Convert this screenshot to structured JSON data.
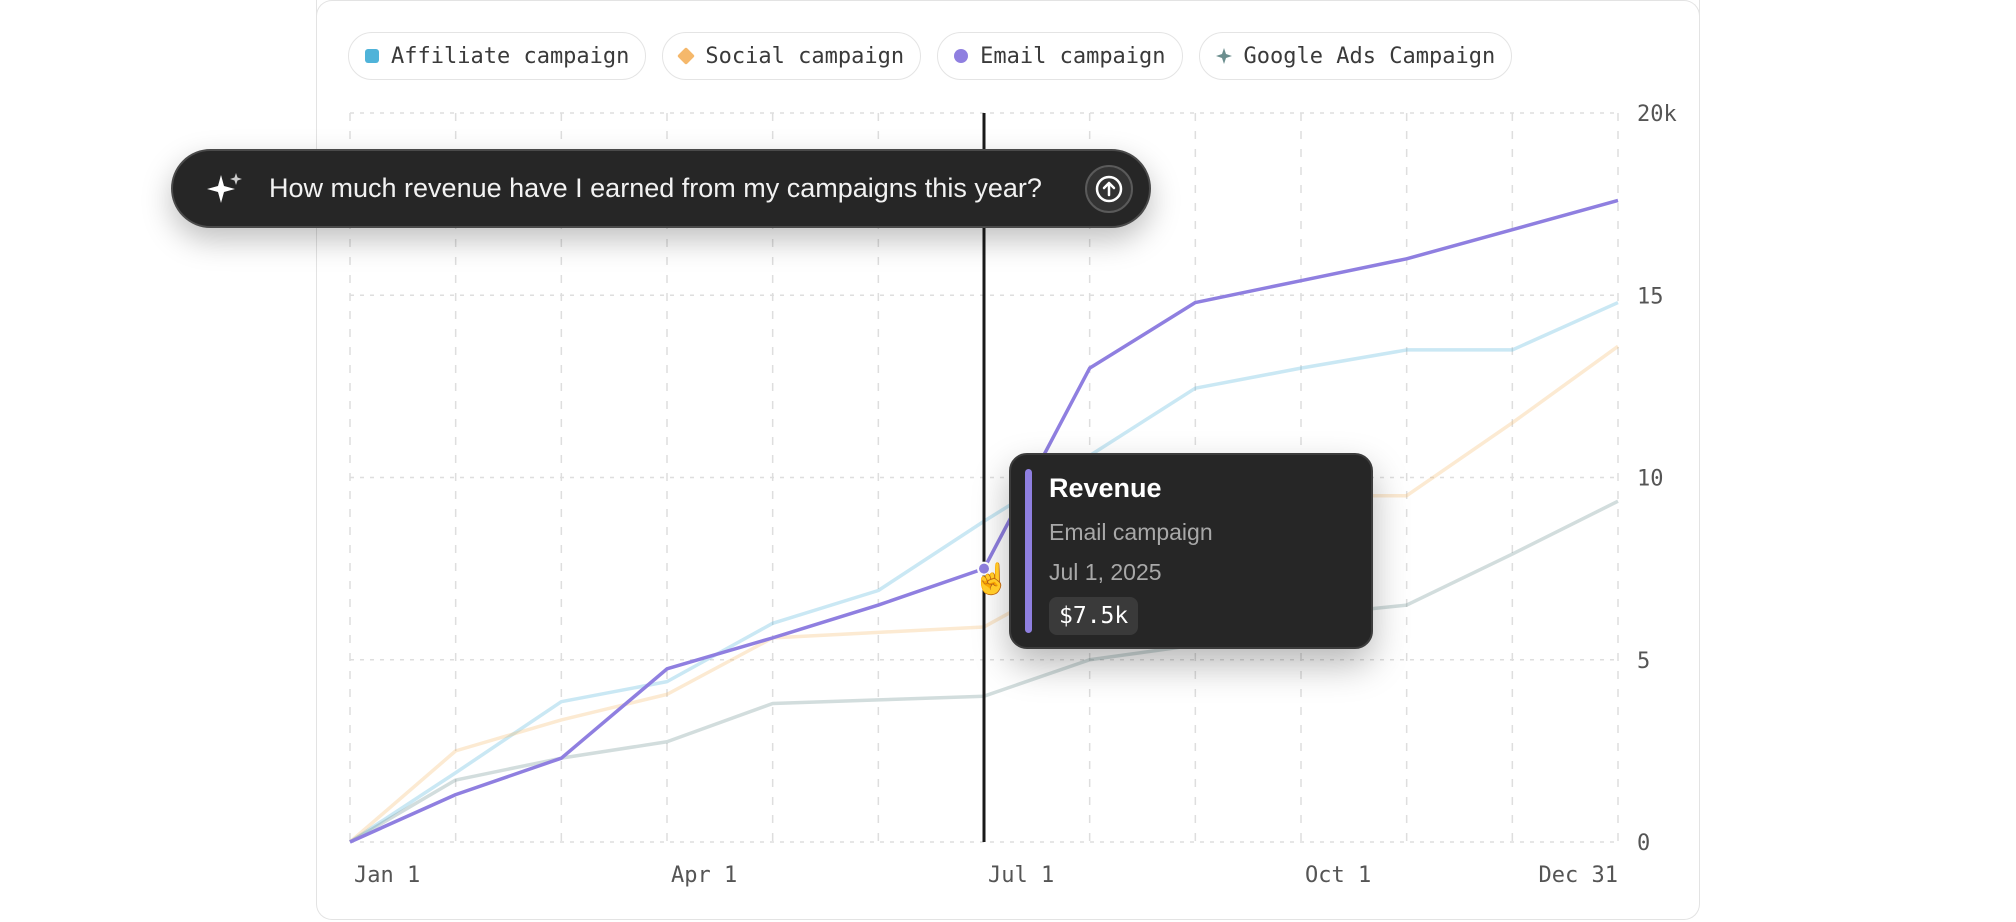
{
  "legend": [
    {
      "label": "Affiliate campaign",
      "color": "#4fb3d9",
      "icon": "square"
    },
    {
      "label": "Social campaign",
      "color": "#f5b86b",
      "icon": "diamond"
    },
    {
      "label": "Email campaign",
      "color": "#8f7fe0",
      "icon": "circle"
    },
    {
      "label": "Google Ads Campaign",
      "color": "#6b8e8e",
      "icon": "sparkle"
    }
  ],
  "prompt": {
    "text": "How much revenue have I earned from my campaigns this year?",
    "icon": "sparkle-icon",
    "send_icon": "arrow-up-circle-icon"
  },
  "tooltip": {
    "title": "Revenue",
    "series": "Email campaign",
    "date": "Jul 1, 2025",
    "value": "$7.5k",
    "accent": "#8f7fe0"
  },
  "chart_data": {
    "type": "line",
    "x": [
      "Jan 1",
      "Feb 1",
      "Mar 1",
      "Apr 1",
      "May 1",
      "Jun 1",
      "Jul 1",
      "Aug 1",
      "Sep 1",
      "Oct 1",
      "Nov 1",
      "Dec 1",
      "Dec 31"
    ],
    "x_tick_labels": [
      "Jan 1",
      "Apr 1",
      "Jul 1",
      "Oct 1",
      "Dec 31"
    ],
    "y_tick_labels": [
      "0",
      "5",
      "10",
      "15",
      "20k"
    ],
    "ylim": [
      0,
      20000
    ],
    "grid": true,
    "legend_position": "top",
    "highlight": {
      "x": "Jul 1",
      "series": "Email campaign"
    },
    "series": [
      {
        "name": "Affiliate campaign",
        "color": "#4fb3d9",
        "values": [
          0,
          1900,
          3850,
          4400,
          6000,
          6900,
          8800,
          10600,
          12450,
          13000,
          13500,
          13500,
          14800
        ]
      },
      {
        "name": "Social campaign",
        "color": "#f5b86b",
        "values": [
          0,
          2500,
          3350,
          4050,
          5600,
          5750,
          5900,
          7500,
          9000,
          9500,
          9500,
          11500,
          13600
        ]
      },
      {
        "name": "Email campaign",
        "color": "#8f7fe0",
        "values": [
          0,
          1300,
          2300,
          4750,
          5600,
          6500,
          7500,
          13000,
          14800,
          15400,
          16000,
          16800,
          17600
        ]
      },
      {
        "name": "Google Ads Campaign",
        "color": "#6b8e8e",
        "values": [
          0,
          1700,
          2300,
          2750,
          3800,
          3900,
          4000,
          5000,
          5400,
          6200,
          6500,
          7900,
          9350
        ]
      }
    ]
  }
}
